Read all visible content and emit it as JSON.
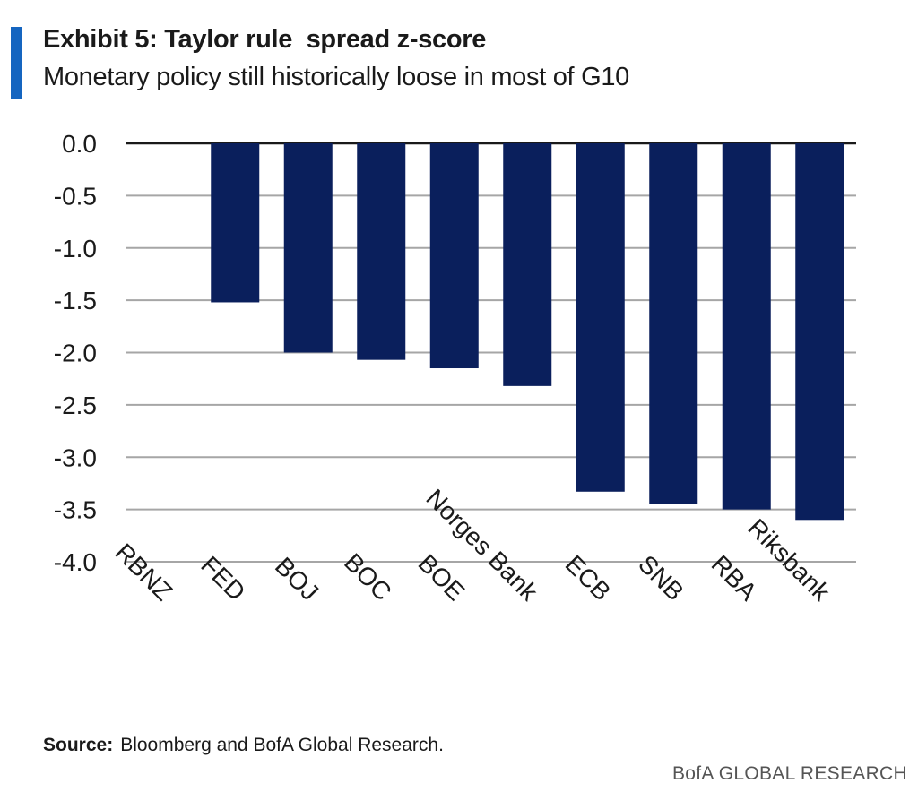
{
  "header": {
    "title": "Exhibit 5: Taylor rule  spread z-score",
    "subtitle": "Monetary policy still historically loose in most of G10"
  },
  "chart_data": {
    "type": "bar",
    "title": "Exhibit 5: Taylor rule  spread z-score",
    "subtitle": "Monetary policy still historically loose in most of G10",
    "categories": [
      "RBNZ",
      "FED",
      "BOJ",
      "BOC",
      "BOE",
      "Norges Bank",
      "ECB",
      "SNB",
      "RBA",
      "Riksbank"
    ],
    "values": [
      0.0,
      -1.52,
      -2.0,
      -2.07,
      -2.15,
      -2.32,
      -3.33,
      -3.45,
      -3.5,
      -3.6
    ],
    "xlabel": "",
    "ylabel": "",
    "ylim": [
      -4.0,
      0.0
    ],
    "yticks": [
      "0.0",
      "-0.5",
      "-1.0",
      "-1.5",
      "-2.0",
      "-2.5",
      "-3.0",
      "-3.5",
      "-4.0"
    ],
    "grid": true,
    "legend": "none",
    "bar_color": "#0a1f5c"
  },
  "footer": {
    "source_label": "Source:",
    "source_text": "Bloomberg and BofA Global Research.",
    "brand": "BofA GLOBAL RESEARCH"
  },
  "colors": {
    "accent": "#1565c0",
    "bar": "#0a1f5c",
    "grid": "#a6a6a6"
  }
}
